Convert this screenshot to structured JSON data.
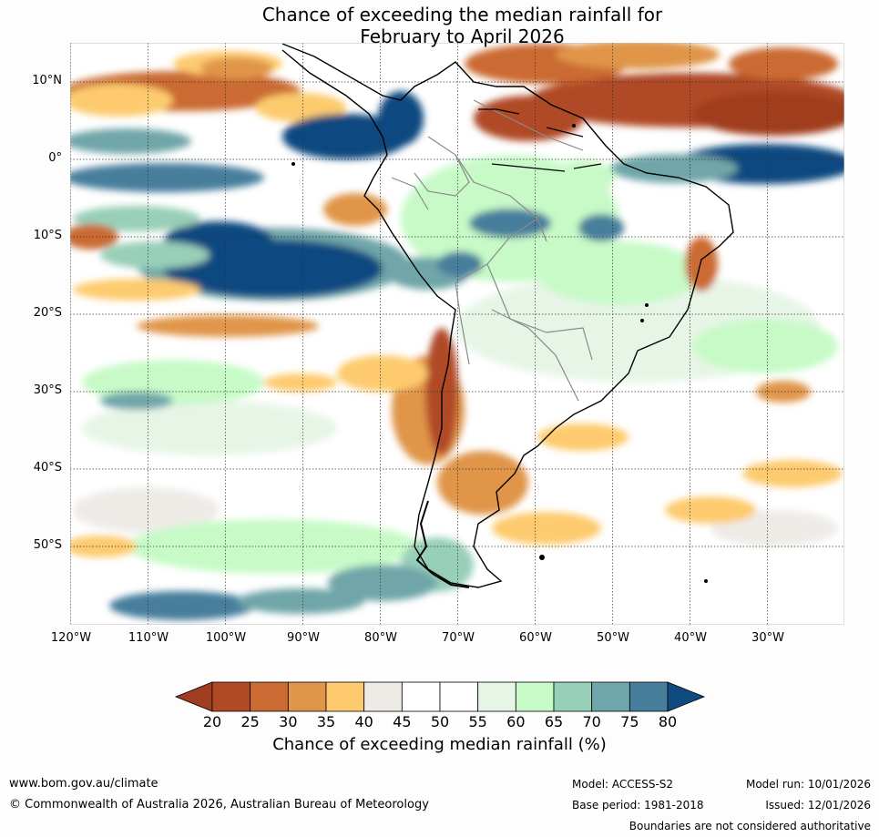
{
  "title": {
    "line1": "Chance of exceeding the median rainfall for",
    "line2": "February to April 2026"
  },
  "map": {
    "lat_labels": [
      "10°N",
      "0°",
      "10°S",
      "20°S",
      "30°S",
      "40°S",
      "50°S"
    ],
    "lon_labels": [
      "120°W",
      "110°W",
      "100°W",
      "90°W",
      "80°W",
      "70°W",
      "60°W",
      "50°W",
      "40°W",
      "30°W"
    ],
    "extent": {
      "lon_min": -121,
      "lon_max": -21,
      "lat_min": -60,
      "lat_max": 15
    }
  },
  "colorbar": {
    "ticks": [
      "20",
      "25",
      "30",
      "35",
      "40",
      "45",
      "50",
      "55",
      "60",
      "65",
      "70",
      "75",
      "80"
    ],
    "colors": [
      "#a03c1f",
      "#b04a25",
      "#cb6a33",
      "#e0954a",
      "#fdcb6e",
      "#eeebe7",
      "#ffffff",
      "#ffffff",
      "#e7f5e7",
      "#c7fac7",
      "#98cfb8",
      "#6fa6a9",
      "#477e9c",
      "#0f4a80"
    ],
    "label": "Chance of exceeding median rainfall (%)"
  },
  "footer": {
    "website": "www.bom.gov.au/climate",
    "copyright": "© Commonwealth of Australia 2026, Australian Bureau of Meteorology",
    "model": "Model: ACCESS-S2",
    "base_period": "Base period: 1981-2018",
    "model_run": "Model run: 10/01/2026",
    "issued": "Issued: 12/01/2026",
    "boundaries": "Boundaries are not considered authoritative"
  }
}
